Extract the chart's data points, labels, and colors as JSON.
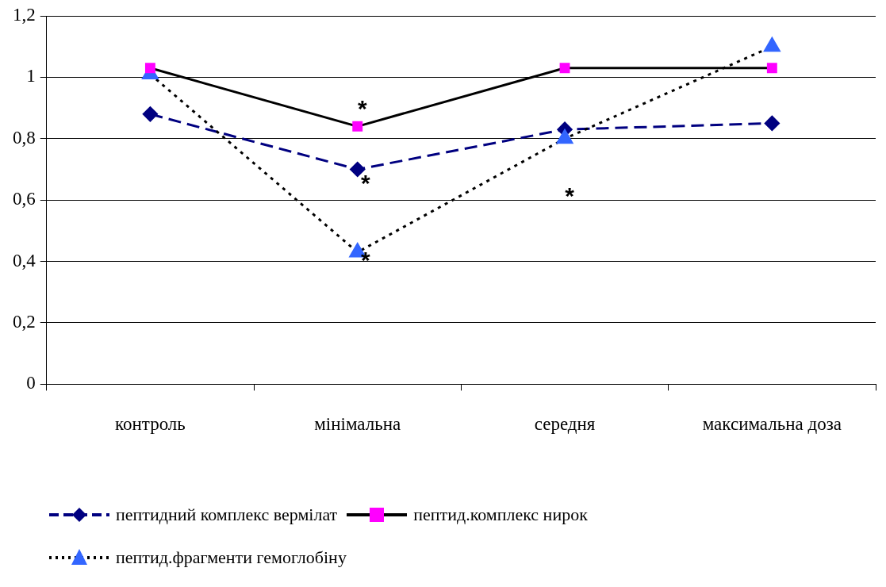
{
  "chart_data": {
    "type": "line",
    "categories": [
      "контроль",
      "мінімальна",
      "середня",
      "максимальна доза"
    ],
    "ylim": [
      0,
      1.2
    ],
    "yticks": [
      0,
      {
        "value": 0.2,
        "label": "0,2"
      },
      {
        "value": 0.4,
        "label": "0,4"
      },
      {
        "value": 0.6,
        "label": "0,6"
      },
      {
        "value": 0.8,
        "label": "0,8"
      },
      1,
      {
        "value": 1.2,
        "label": "1,2"
      }
    ],
    "grid": "y",
    "legend": "bottom",
    "series": [
      {
        "name": "пептидний комплекс вермілат",
        "color": "#000080",
        "colors": [
          "#000080",
          "#000080",
          "#000080",
          "#000080"
        ],
        "marker": "diamond",
        "line_style": "dashed",
        "values": [
          0.88,
          0.7,
          0.83,
          0.85
        ]
      },
      {
        "name": "пептид.комплекс нирок",
        "color": "#000000",
        "colors": [
          "#ff00ff",
          "#ff00ff",
          "#ff00ff",
          "#ff00ff"
        ],
        "marker": "square",
        "line_style": "solid",
        "values": [
          1.03,
          0.84,
          1.03,
          1.03
        ]
      },
      {
        "name": "пептид.фрагменти гемоглобіну",
        "color": "#000000",
        "colors": [
          "#3366ff",
          "#3366ff",
          "#3366ff",
          "#3366ff"
        ],
        "marker": "triangle",
        "line_style": "dotted",
        "values": [
          1.01,
          0.43,
          0.8,
          1.1
        ]
      }
    ],
    "annotations": [
      "*",
      {
        "text": "*",
        "x": "мінімальна",
        "y": 0.67
      },
      {
        "text": "*",
        "x": "мінімальна",
        "y": 0.42
      },
      "*"
    ]
  }
}
